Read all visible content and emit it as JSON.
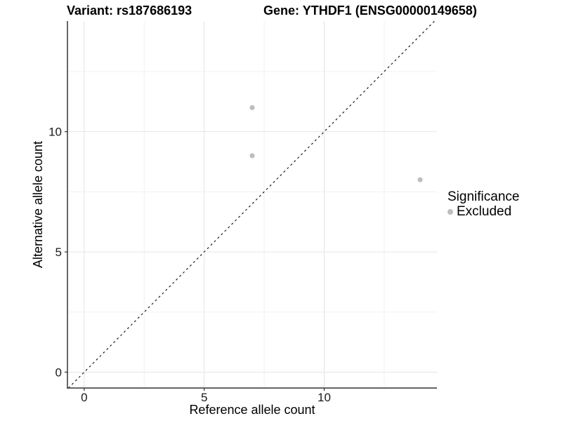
{
  "chart_data": {
    "type": "scatter",
    "title_left": "Variant: rs187686193",
    "title_right": "Gene: YTHDF1 (ENSG00000149658)",
    "xlabel": "Reference allele count",
    "ylabel": "Alternative allele count",
    "xlim": [
      -0.7,
      14.7
    ],
    "ylim": [
      -0.66,
      14.6
    ],
    "x_major_ticks": [
      0,
      5,
      10
    ],
    "y_major_ticks": [
      0,
      5,
      10
    ],
    "x_minor_ticks": [
      2.5,
      7.5,
      12.5
    ],
    "y_minor_ticks": [
      2.5,
      7.5,
      12.5
    ],
    "grid": true,
    "identity_line": {
      "slope": 1,
      "intercept": 0,
      "style": "dashed"
    },
    "series": [
      {
        "name": "Excluded",
        "color": "#BEBEBE",
        "points": [
          {
            "x": 7,
            "y": 11
          },
          {
            "x": 7,
            "y": 9
          },
          {
            "x": 14,
            "y": 8
          }
        ]
      }
    ],
    "legend": {
      "title": "Significance",
      "position": "right",
      "items": [
        {
          "label": "Excluded",
          "color": "#BEBEBE"
        }
      ]
    },
    "colors": {
      "point": "#BEBEBE",
      "grid_major": "#E4E4E4",
      "grid_minor": "#F1F1F1",
      "axis_line": "#333333",
      "tick_mark": "#333333",
      "tick_label": "#1a1a1a",
      "axis_title": "#000000",
      "identity_line": "#1a1a1a",
      "background": "#ffffff"
    }
  }
}
